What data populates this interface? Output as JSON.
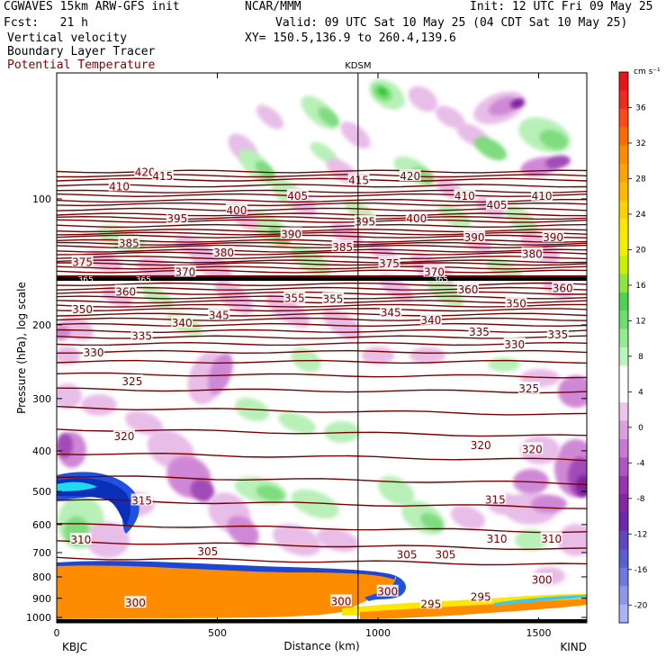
{
  "header": {
    "model": "CGWAVES 15km ARW-GFS init",
    "org": "NCAR/MMM",
    "init": "Init: 12 UTC Fri 09 May 25",
    "fcst": "Fcst:   21 h",
    "valid": "Valid: 09 UTC Sat 10 May 25 (04 CDT Sat 10 May 25)",
    "field1": "Vertical velocity",
    "field2": "Boundary Layer Tracer",
    "field3": "Potential Temperature",
    "xy": "XY= 150.5,136.9 to 260.4,139.6"
  },
  "colors": {
    "theta": "#7a0000",
    "tracer": "#ff8c00"
  },
  "chart_data": {
    "type": "heatmap",
    "xlabel": "Distance (km)",
    "ylabel": "Pressure (hPa), log scale",
    "xlim": [
      0,
      1650
    ],
    "ylim": [
      1030,
      50
    ],
    "y_scale": "log",
    "x_ticks": [
      "0",
      "500",
      "1000",
      "1500"
    ],
    "y_ticks": [
      "100",
      "200",
      "300",
      "400",
      "500",
      "600",
      "700",
      "800",
      "900",
      "1000"
    ],
    "left_station": "KBJC",
    "right_station": "KIND",
    "marker_station": "KDSM",
    "marker_x_km": 938,
    "colorbar": {
      "units": "cm s⁻¹",
      "levels": [
        -20,
        -18,
        -16,
        -14,
        -12,
        -10,
        -8,
        -6,
        -4,
        -2,
        0,
        2,
        4,
        6,
        8,
        10,
        12,
        14,
        16,
        18,
        20,
        22,
        24,
        26,
        28,
        30,
        32,
        34,
        36,
        38,
        40
      ],
      "labels": [
        "36",
        "32",
        "28",
        "24",
        "20",
        "16",
        "12",
        "8",
        "4",
        "0",
        "-4",
        "-8",
        "-12",
        "-16",
        "-20"
      ],
      "colors": [
        "#e8141c",
        "#f0281e",
        "#ff4a14",
        "#ff6b00",
        "#ff8c00",
        "#ffa200",
        "#ffb800",
        "#ffd000",
        "#ffe600",
        "#f0f000",
        "#c8f000",
        "#8ee63c",
        "#50d250",
        "#6ede6e",
        "#94eb94",
        "#bcf5bc",
        "#ffffff",
        "#ffffff",
        "#ecc6ec",
        "#daa0e0",
        "#c67ad2",
        "#b054c4",
        "#9a32b4",
        "#8226a2",
        "#6c28b0",
        "#6046c0",
        "#5a5ed2",
        "#6e78e0",
        "#8c96ea",
        "#aab4f2"
      ]
    },
    "theta_labels": [
      {
        "text": "420",
        "x": 275,
        "p": 86
      },
      {
        "text": "420",
        "x": 1100,
        "p": 88
      },
      {
        "text": "415",
        "x": 330,
        "p": 88
      },
      {
        "text": "415",
        "x": 940,
        "p": 90
      },
      {
        "text": "410",
        "x": 195,
        "p": 93
      },
      {
        "text": "410",
        "x": 1270,
        "p": 98
      },
      {
        "text": "410",
        "x": 1510,
        "p": 98
      },
      {
        "text": "405",
        "x": 750,
        "p": 98
      },
      {
        "text": "405",
        "x": 1370,
        "p": 103
      },
      {
        "text": "400",
        "x": 560,
        "p": 106
      },
      {
        "text": "400",
        "x": 1120,
        "p": 111
      },
      {
        "text": "395",
        "x": 375,
        "p": 111
      },
      {
        "text": "395",
        "x": 960,
        "p": 113
      },
      {
        "text": "390",
        "x": 730,
        "p": 121
      },
      {
        "text": "390",
        "x": 1300,
        "p": 123
      },
      {
        "text": "390",
        "x": 1545,
        "p": 123
      },
      {
        "text": "385",
        "x": 225,
        "p": 127
      },
      {
        "text": "385",
        "x": 890,
        "p": 130
      },
      {
        "text": "380",
        "x": 520,
        "p": 134
      },
      {
        "text": "380",
        "x": 1480,
        "p": 135
      },
      {
        "text": "375",
        "x": 80,
        "p": 141
      },
      {
        "text": "375",
        "x": 1035,
        "p": 142
      },
      {
        "text": "370",
        "x": 400,
        "p": 149
      },
      {
        "text": "370",
        "x": 1175,
        "p": 149
      },
      {
        "text": "360",
        "x": 215,
        "p": 166
      },
      {
        "text": "360",
        "x": 1280,
        "p": 164
      },
      {
        "text": "360",
        "x": 1575,
        "p": 163
      },
      {
        "text": "355",
        "x": 740,
        "p": 172
      },
      {
        "text": "355",
        "x": 860,
        "p": 173
      },
      {
        "text": "350",
        "x": 80,
        "p": 183
      },
      {
        "text": "350",
        "x": 1430,
        "p": 177
      },
      {
        "text": "345",
        "x": 505,
        "p": 189
      },
      {
        "text": "345",
        "x": 1040,
        "p": 186
      },
      {
        "text": "340",
        "x": 390,
        "p": 197
      },
      {
        "text": "340",
        "x": 1165,
        "p": 194
      },
      {
        "text": "335",
        "x": 265,
        "p": 212
      },
      {
        "text": "335",
        "x": 1315,
        "p": 207
      },
      {
        "text": "335",
        "x": 1560,
        "p": 210
      },
      {
        "text": "330",
        "x": 115,
        "p": 232
      },
      {
        "text": "330",
        "x": 1425,
        "p": 222
      },
      {
        "text": "325",
        "x": 235,
        "p": 272
      },
      {
        "text": "325",
        "x": 1470,
        "p": 283
      },
      {
        "text": "320",
        "x": 210,
        "p": 368
      },
      {
        "text": "320",
        "x": 1320,
        "p": 386
      },
      {
        "text": "320",
        "x": 1480,
        "p": 395
      },
      {
        "text": "315",
        "x": 265,
        "p": 524
      },
      {
        "text": "315",
        "x": 1365,
        "p": 521
      },
      {
        "text": "310",
        "x": 75,
        "p": 650
      },
      {
        "text": "310",
        "x": 1370,
        "p": 646
      },
      {
        "text": "310",
        "x": 1540,
        "p": 646
      },
      {
        "text": "305",
        "x": 470,
        "p": 693
      },
      {
        "text": "305",
        "x": 1090,
        "p": 706
      },
      {
        "text": "305",
        "x": 1210,
        "p": 706
      },
      {
        "text": "300",
        "x": 245,
        "p": 920
      },
      {
        "text": "300",
        "x": 885,
        "p": 912
      },
      {
        "text": "300",
        "x": 1030,
        "p": 865
      },
      {
        "text": "300",
        "x": 1510,
        "p": 810
      },
      {
        "text": "295",
        "x": 1165,
        "p": 925
      },
      {
        "text": "295",
        "x": 1320,
        "p": 890
      }
    ],
    "tropopause_labels": [
      {
        "text": "365",
        "x": 90,
        "p": 155
      },
      {
        "text": "365",
        "x": 270,
        "p": 155
      },
      {
        "text": "365",
        "x": 1195,
        "p": 155
      }
    ]
  }
}
